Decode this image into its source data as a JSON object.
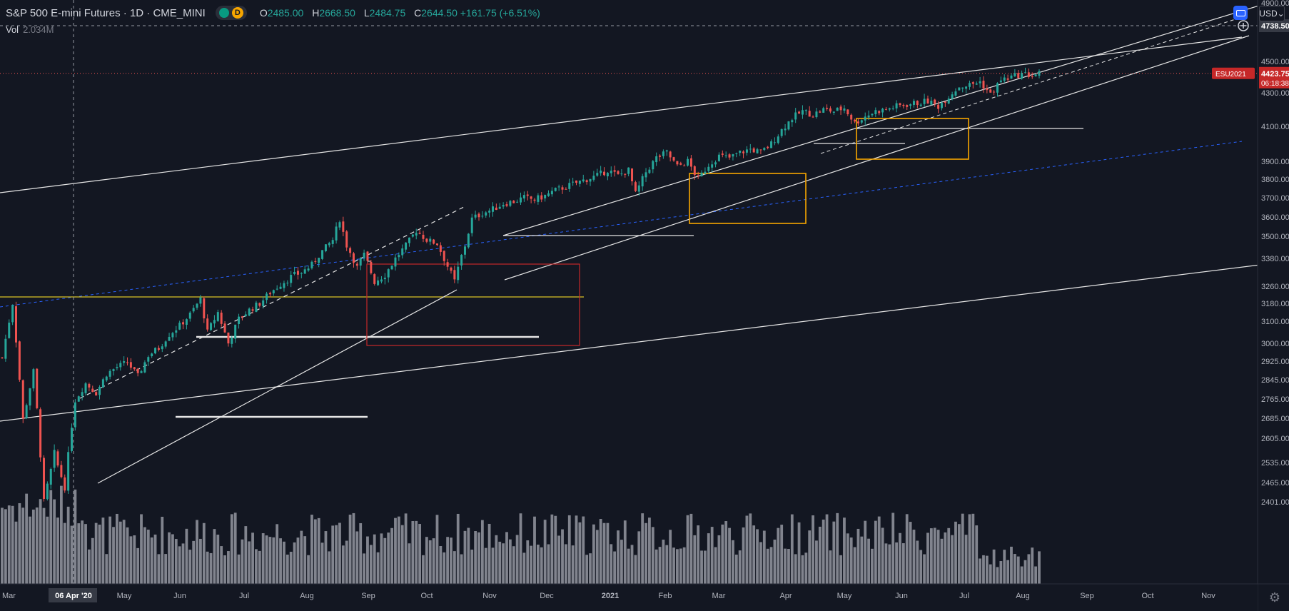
{
  "header": {
    "symbol": "S&P 500 E-mini Futures · 1D · CME_MINI",
    "ohlc": [
      {
        "k": "O",
        "v": "2485.00"
      },
      {
        "k": "H",
        "v": "2668.50"
      },
      {
        "k": "L",
        "v": "2484.75"
      },
      {
        "k": "C",
        "v": "2644.50 +161.75 (+6.51%)"
      }
    ],
    "pill_letter": "D",
    "vol_label": "Vol",
    "vol_value": "2.034M",
    "currency": "USD"
  },
  "colors": {
    "bg": "#131722",
    "up": "#26a69a",
    "down": "#ef5350",
    "text": "#d1d4dc",
    "axis": "#b2b5be",
    "trend": "#e6e6e6",
    "blueDash": "#2962ff",
    "yellow": "#d9c426",
    "redBox": "#c62828",
    "orangeBox": "#f7a600",
    "price_tag": "#c62828",
    "volume": "#9598a1"
  },
  "chart_data": {
    "type": "candlestick",
    "instrument": "S&P 500 E-mini Futures",
    "interval": "1D",
    "exchange": "CME_MINI",
    "ylim": [
      2370,
      4920
    ],
    "y_ticks": [
      "4900.00",
      "4738.50",
      "4500.00",
      "4300.00",
      "4100.00",
      "3900.00",
      "3800.00",
      "3700.00",
      "3600.00",
      "3500.00",
      "3380.00",
      "3260.00",
      "3180.00",
      "3100.00",
      "3000.00",
      "2925.00",
      "2845.00",
      "2765.00",
      "2685.00",
      "2605.00",
      "2535.00",
      "2465.00",
      "2401.00"
    ],
    "x_ticks": [
      "Mar",
      "06 Apr '20",
      "May",
      "Jun",
      "Jul",
      "Aug",
      "Sep",
      "Oct",
      "Nov",
      "Dec",
      "2021",
      "Feb",
      "Mar",
      "Apr",
      "May",
      "Jun",
      "Jul",
      "Aug",
      "Sep",
      "Oct",
      "Nov"
    ],
    "crosshair_price": "4738.50",
    "last_price": {
      "symbol": "ESU2021",
      "price": "4423.75",
      "countdown": "06:18:38"
    },
    "anchors": [
      [
        0,
        2940
      ],
      [
        3,
        3180
      ],
      [
        6,
        2680
      ],
      [
        9,
        2880
      ],
      [
        12,
        2400
      ],
      [
        15,
        2560
      ],
      [
        18,
        2450
      ],
      [
        21,
        2760
      ],
      [
        24,
        2830
      ],
      [
        27,
        2790
      ],
      [
        30,
        2870
      ],
      [
        33,
        2900
      ],
      [
        36,
        2920
      ],
      [
        39,
        2860
      ],
      [
        42,
        2950
      ],
      [
        45,
        2980
      ],
      [
        48,
        3040
      ],
      [
        51,
        3080
      ],
      [
        54,
        3130
      ],
      [
        57,
        3200
      ],
      [
        59,
        3050
      ],
      [
        62,
        3140
      ],
      [
        65,
        3000
      ],
      [
        68,
        3110
      ],
      [
        71,
        3150
      ],
      [
        74,
        3180
      ],
      [
        77,
        3230
      ],
      [
        80,
        3270
      ],
      [
        83,
        3300
      ],
      [
        86,
        3320
      ],
      [
        89,
        3350
      ],
      [
        92,
        3420
      ],
      [
        95,
        3480
      ],
      [
        97,
        3590
      ],
      [
        99,
        3450
      ],
      [
        102,
        3340
      ],
      [
        104,
        3400
      ],
      [
        107,
        3280
      ],
      [
        110,
        3310
      ],
      [
        113,
        3380
      ],
      [
        116,
        3450
      ],
      [
        119,
        3530
      ],
      [
        122,
        3480
      ],
      [
        125,
        3460
      ],
      [
        127,
        3380
      ],
      [
        130,
        3280
      ],
      [
        133,
        3450
      ],
      [
        135,
        3590
      ],
      [
        138,
        3620
      ],
      [
        141,
        3640
      ],
      [
        144,
        3670
      ],
      [
        147,
        3680
      ],
      [
        150,
        3700
      ],
      [
        153,
        3690
      ],
      [
        156,
        3710
      ],
      [
        159,
        3740
      ],
      [
        162,
        3760
      ],
      [
        165,
        3780
      ],
      [
        168,
        3800
      ],
      [
        171,
        3820
      ],
      [
        174,
        3850
      ],
      [
        177,
        3820
      ],
      [
        180,
        3850
      ],
      [
        182,
        3720
      ],
      [
        185,
        3840
      ],
      [
        188,
        3920
      ],
      [
        191,
        3950
      ],
      [
        194,
        3870
      ],
      [
        197,
        3900
      ],
      [
        200,
        3800
      ],
      [
        203,
        3880
      ],
      [
        206,
        3930
      ],
      [
        209,
        3920
      ],
      [
        212,
        3950
      ],
      [
        215,
        3970
      ],
      [
        218,
        3950
      ],
      [
        221,
        4000
      ],
      [
        224,
        4080
      ],
      [
        227,
        4150
      ],
      [
        230,
        4190
      ],
      [
        233,
        4170
      ],
      [
        236,
        4200
      ],
      [
        239,
        4190
      ],
      [
        242,
        4210
      ],
      [
        245,
        4120
      ],
      [
        248,
        4160
      ],
      [
        251,
        4190
      ],
      [
        254,
        4200
      ],
      [
        257,
        4220
      ],
      [
        260,
        4230
      ],
      [
        263,
        4240
      ],
      [
        266,
        4250
      ],
      [
        269,
        4220
      ],
      [
        272,
        4280
      ],
      [
        275,
        4340
      ],
      [
        278,
        4350
      ],
      [
        281,
        4370
      ],
      [
        284,
        4290
      ],
      [
        287,
        4380
      ],
      [
        290,
        4400
      ],
      [
        293,
        4420
      ],
      [
        296,
        4410
      ],
      [
        298,
        4424
      ]
    ],
    "volume_range": "approx. 0.5M – 2.0M shares/day (unlabeled pane)"
  },
  "drawings": {
    "trendlines": 9,
    "boxes": [
      "red range box Sep–Nov 2020",
      "orange box Feb–Mar 2021",
      "orange box May–Jun 2021"
    ],
    "horizontal_levels": [
      3380,
      3240,
      2925,
      3660,
      4170
    ]
  }
}
